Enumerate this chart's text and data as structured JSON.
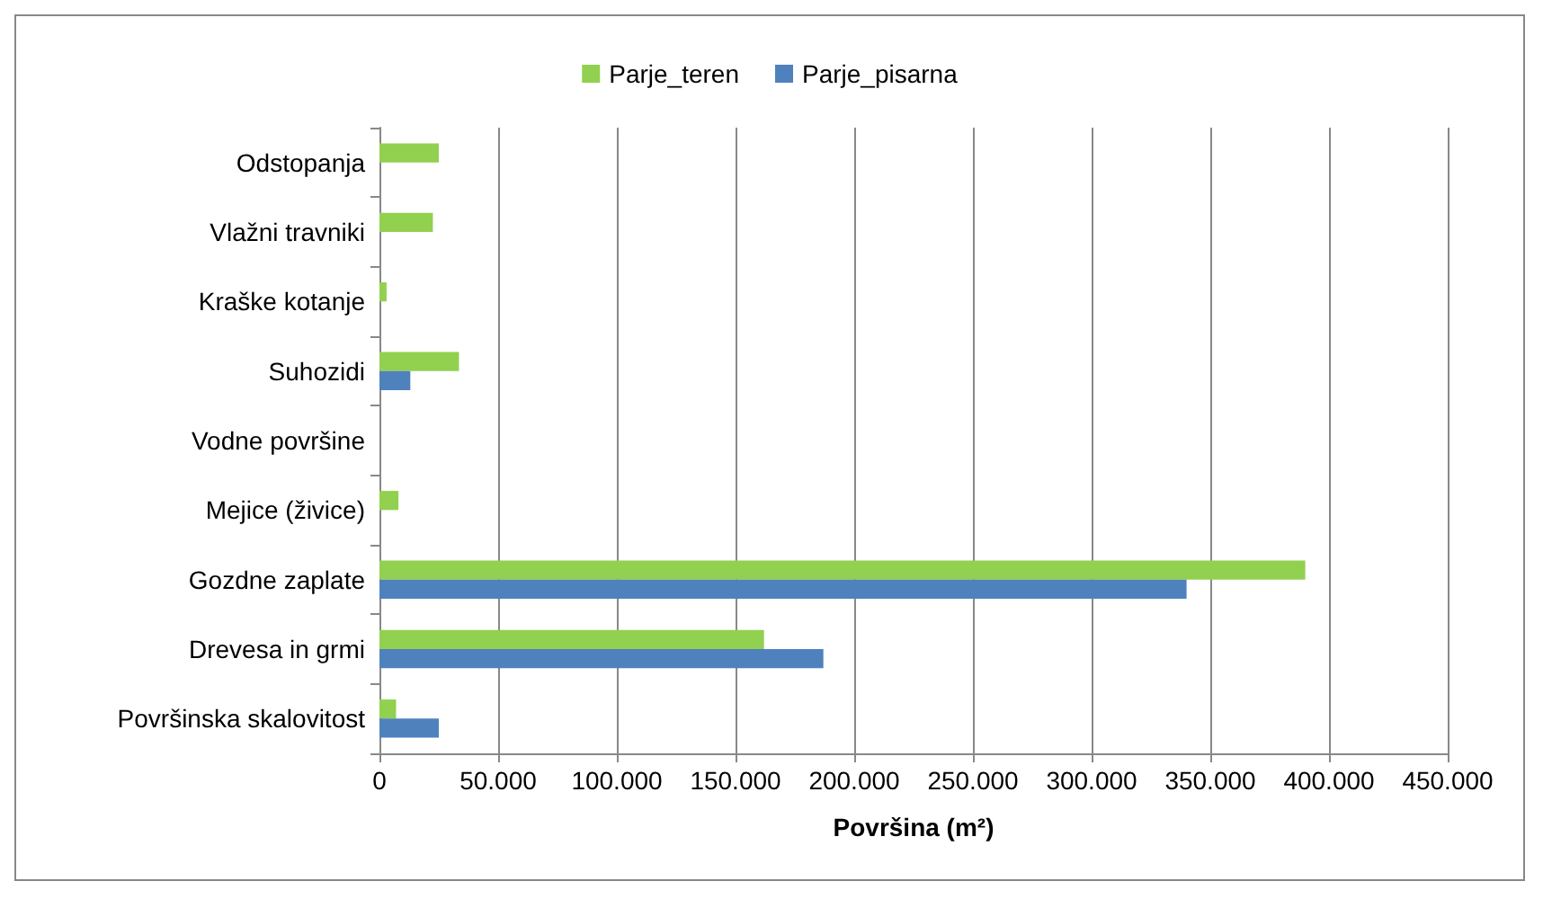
{
  "chart_data": {
    "type": "bar",
    "orientation": "horizontal",
    "xlabel": "Površina (m²)",
    "categories": [
      "Odstopanja",
      "Vlažni travniki",
      "Kraške kotanje",
      "Suhozidi",
      "Vodne površine",
      "Mejice (živice)",
      "Gozdne zaplate",
      "Drevesa in grmi",
      "Površinska skalovitost"
    ],
    "series": [
      {
        "name": "Parje_teren",
        "color": "#92d050",
        "values": [
          25000,
          22500,
          3000,
          33500,
          0,
          8000,
          390000,
          162000,
          7000
        ]
      },
      {
        "name": "Parje_pisarna",
        "color": "#4f81bd",
        "values": [
          0,
          0,
          0,
          13000,
          0,
          0,
          340000,
          187000,
          25000
        ]
      }
    ],
    "xlim": [
      0,
      450000
    ],
    "xticks": [
      {
        "value": 0,
        "label": "0"
      },
      {
        "value": 50000,
        "label": "50.000"
      },
      {
        "value": 100000,
        "label": "100.000"
      },
      {
        "value": 150000,
        "label": "150.000"
      },
      {
        "value": 200000,
        "label": "200.000"
      },
      {
        "value": 250000,
        "label": "250.000"
      },
      {
        "value": 300000,
        "label": "300.000"
      },
      {
        "value": 350000,
        "label": "350.000"
      },
      {
        "value": 400000,
        "label": "400.000"
      },
      {
        "value": 450000,
        "label": "450.000"
      }
    ],
    "grid": "x",
    "legend": "top"
  }
}
